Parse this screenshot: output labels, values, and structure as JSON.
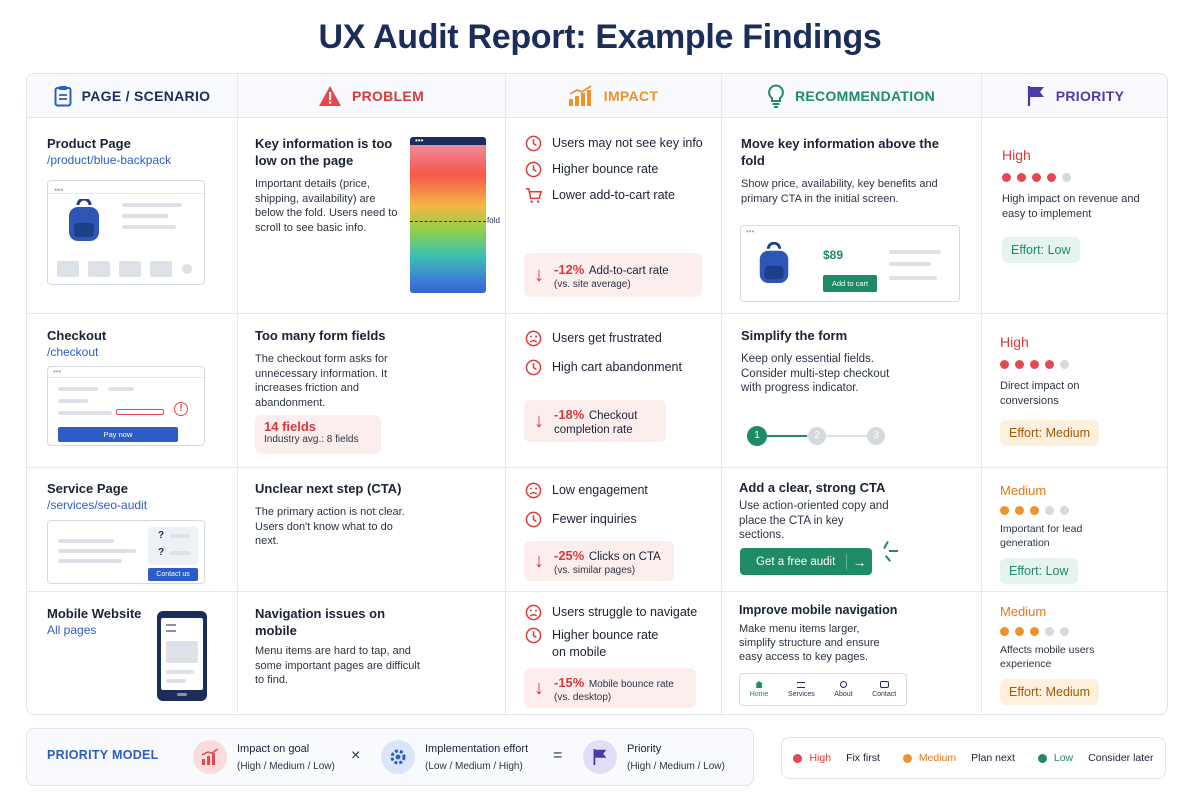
{
  "title": "UX Audit Report: Example Findings",
  "headers": {
    "page": "PAGE / SCENARIO",
    "problem": "PROBLEM",
    "impact": "IMPACT",
    "recommendation": "RECOMMENDATION",
    "priority": "PRIORITY"
  },
  "colors": {
    "high": "#e5484d",
    "medium": "#f0922b",
    "low": "#1f8a68",
    "brand": "#1b2d5a"
  },
  "rows": [
    {
      "page": {
        "name": "Product Page",
        "url": "/product/blue-backpack"
      },
      "problem": {
        "title": "Key information is too low on the page",
        "text": "Important details (price, shipping, availability) are below the fold. Users need to scroll to see basic info.",
        "fold_label": "fold"
      },
      "impact": {
        "items": [
          "Users may not see key info",
          "Higher bounce rate",
          "Lower add-to-cart rate"
        ],
        "kpi_value": "-12%",
        "kpi_label": "Add-to-cart rate",
        "kpi_sub": "(vs. site average)"
      },
      "rec": {
        "title": "Move key information above the fold",
        "text": "Show price, availability, key benefits and primary CTA in the initial screen.",
        "price": "$89",
        "button": "Add to cart"
      },
      "priority": {
        "level": "High",
        "dots_filled": 4,
        "dots_total": 5,
        "text": "High impact on revenue and easy to implement",
        "effort": "Effort: Low"
      }
    },
    {
      "page": {
        "name": "Checkout",
        "url": "/checkout",
        "button": "Pay now"
      },
      "problem": {
        "title": "Too many form fields",
        "text": "The checkout form asks for unnecessary information. It increases friction and abandonment.",
        "stat": "14 fields",
        "stat_sub": "Industry avg.: 8 fields"
      },
      "impact": {
        "items": [
          "Users get frustrated",
          "High cart abandonment"
        ],
        "kpi_value": "-18%",
        "kpi_label": "Checkout",
        "kpi_sub": "completion rate"
      },
      "rec": {
        "title": "Simplify the form",
        "text": "Keep only essential fields. Consider multi-step checkout with progress indicator.",
        "steps": [
          "1",
          "2",
          "3"
        ]
      },
      "priority": {
        "level": "High",
        "dots_filled": 4,
        "dots_total": 5,
        "text": "Direct impact on conversions",
        "effort": "Effort: Medium"
      }
    },
    {
      "page": {
        "name": "Service Page",
        "url": "/services/seo-audit",
        "button": "Contact us",
        "q": "?"
      },
      "problem": {
        "title": "Unclear next step (CTA)",
        "text": "The primary action is not clear. Users don't know what to do next."
      },
      "impact": {
        "items": [
          "Low engagement",
          "Fewer inquiries"
        ],
        "kpi_value": "-25%",
        "kpi_label": "Clicks on CTA",
        "kpi_sub": "(vs. similar pages)"
      },
      "rec": {
        "title": "Add a clear, strong CTA",
        "text": "Use action-oriented copy and place the CTA in key sections.",
        "button": "Get a free audit"
      },
      "priority": {
        "level": "Medium",
        "dots_filled": 3,
        "dots_total": 5,
        "text": "Important for lead generation",
        "effort": "Effort: Low"
      }
    },
    {
      "page": {
        "name": "Mobile Website",
        "url": "All pages"
      },
      "problem": {
        "title": "Navigation issues on mobile",
        "text": "Menu items are hard to tap, and some important pages are difficult to find."
      },
      "impact": {
        "items": [
          "Users struggle to navigate",
          "Higher bounce rate on mobile"
        ],
        "kpi_value": "-15%",
        "kpi_label": "Mobile bounce rate",
        "kpi_sub": "(vs. desktop)"
      },
      "rec": {
        "title": "Improve mobile navigation",
        "text": "Make menu items larger, simplify structure and ensure easy access to key pages.",
        "nav": [
          "Home",
          "Services",
          "About",
          "Contact"
        ]
      },
      "priority": {
        "level": "Medium",
        "dots_filled": 3,
        "dots_total": 5,
        "text": "Affects mobile users experience",
        "effort": "Effort: Medium"
      }
    }
  ],
  "footer": {
    "model_label": "PRIORITY MODEL",
    "impact_title": "Impact on goal",
    "impact_sub": "(High / Medium / Low)",
    "times": "×",
    "effort_title": "Implementation effort",
    "effort_sub": "(Low / Medium / High)",
    "equals": "=",
    "priority_title": "Priority",
    "priority_sub": "(High / Medium / Low)",
    "legend": [
      {
        "level": "High",
        "action": "Fix first"
      },
      {
        "level": "Medium",
        "action": "Plan next"
      },
      {
        "level": "Low",
        "action": "Consider later"
      }
    ]
  }
}
